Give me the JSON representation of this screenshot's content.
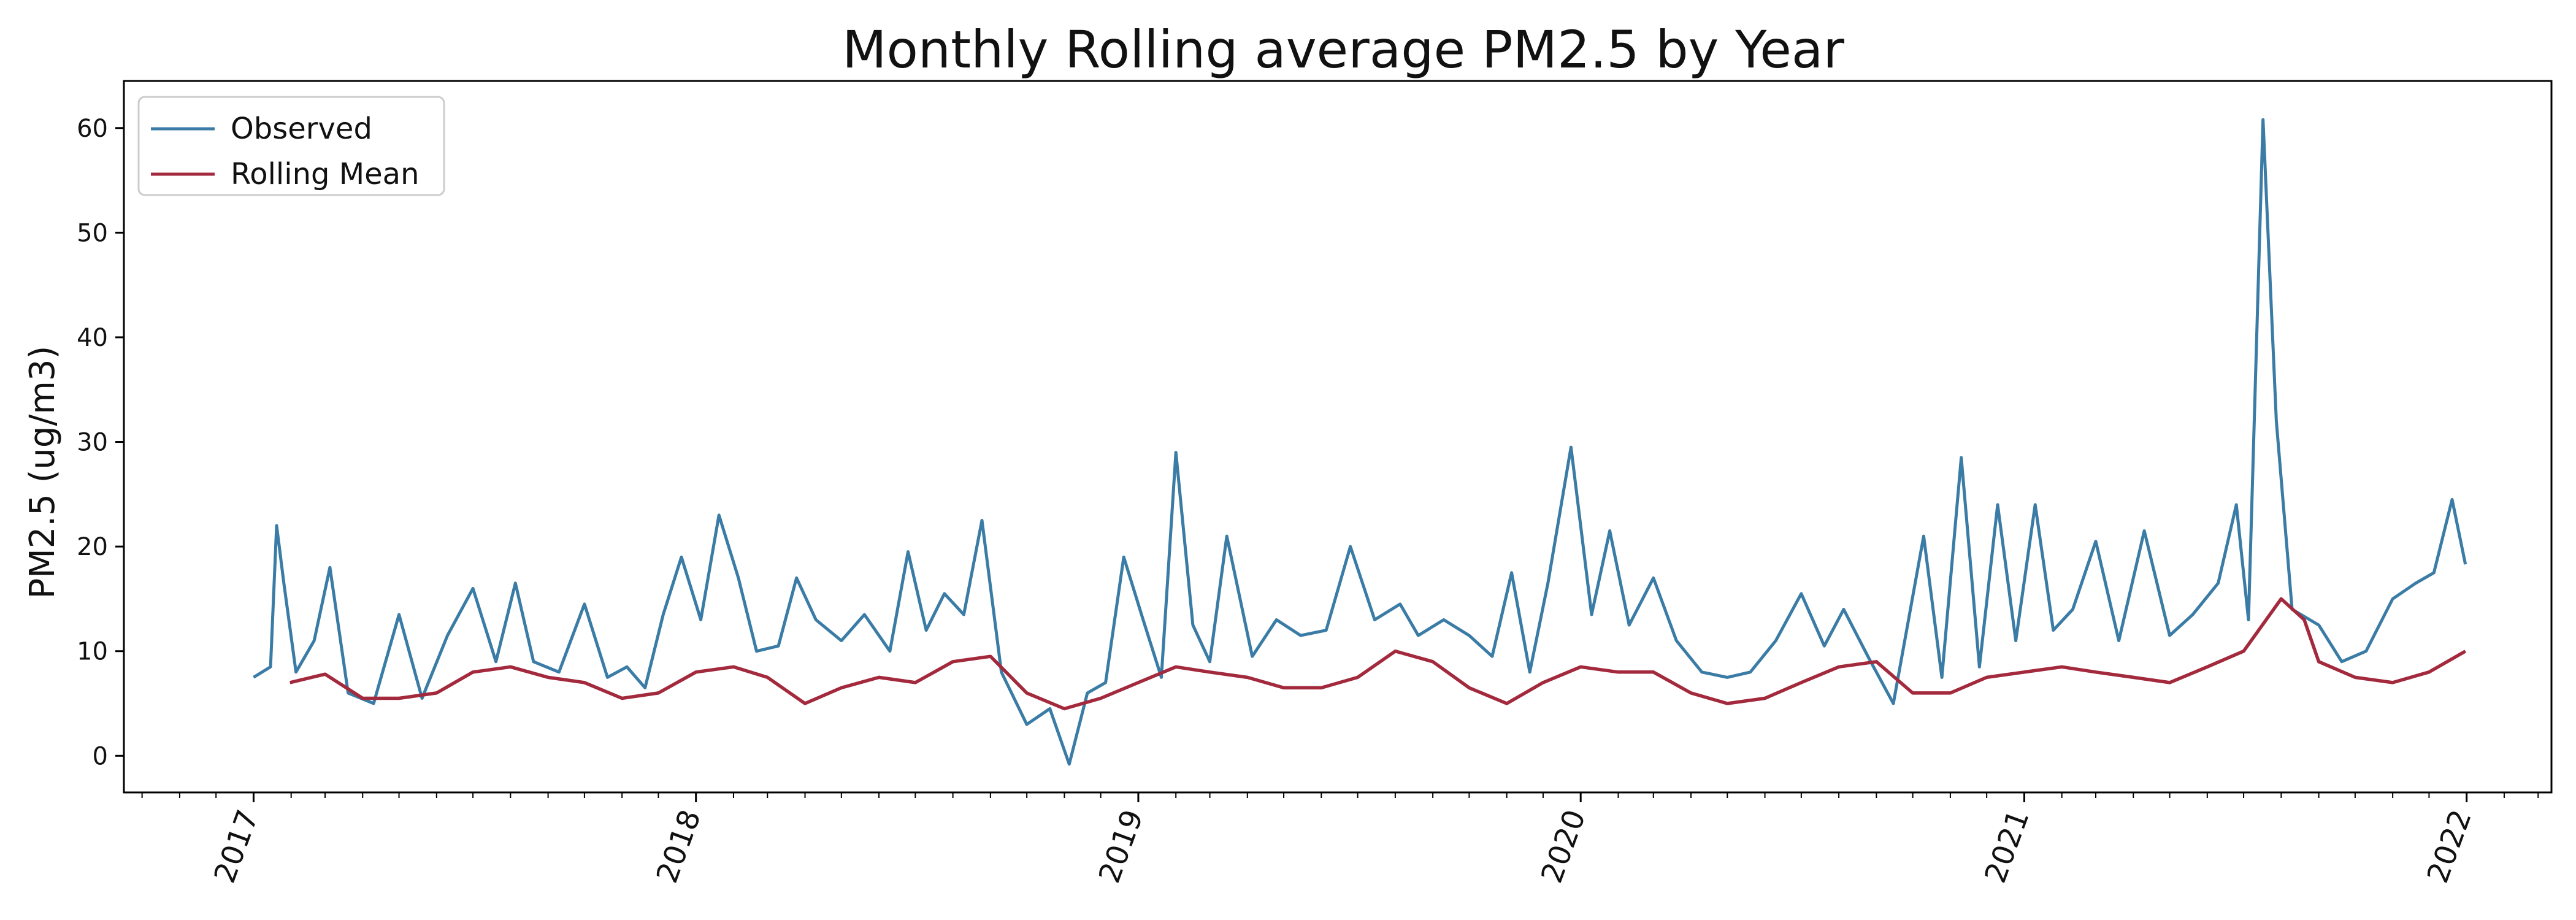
{
  "chart_data": {
    "type": "line",
    "title": "Monthly Rolling average PM2.5 by Year",
    "xlabel": "",
    "ylabel": "PM2.5 (ug/m3)",
    "xlim": [
      "2016-09-16",
      "2022-03-12"
    ],
    "ylim": [
      -3.5,
      64.5
    ],
    "grid": false,
    "legend_position": "top-left",
    "x_ticks": [
      "2017",
      "2018",
      "2019",
      "2020",
      "2021",
      "2022"
    ],
    "y_ticks": [
      0,
      10,
      20,
      30,
      40,
      50,
      60
    ],
    "series": [
      {
        "name": "Observed",
        "color": "#3a7ca5",
        "points": [
          [
            "2017-01-01",
            7.5
          ],
          [
            "2017-01-15",
            8.5
          ],
          [
            "2017-01-20",
            22.0
          ],
          [
            "2017-01-26",
            16.5
          ],
          [
            "2017-02-05",
            8.0
          ],
          [
            "2017-02-20",
            11.0
          ],
          [
            "2017-03-05",
            18.0
          ],
          [
            "2017-03-20",
            6.0
          ],
          [
            "2017-04-10",
            5.0
          ],
          [
            "2017-05-01",
            13.5
          ],
          [
            "2017-05-20",
            5.5
          ],
          [
            "2017-06-10",
            11.5
          ],
          [
            "2017-07-01",
            16.0
          ],
          [
            "2017-07-20",
            9.0
          ],
          [
            "2017-08-05",
            16.5
          ],
          [
            "2017-08-20",
            9.0
          ],
          [
            "2017-09-10",
            8.0
          ],
          [
            "2017-10-01",
            14.5
          ],
          [
            "2017-10-20",
            7.5
          ],
          [
            "2017-11-05",
            8.5
          ],
          [
            "2017-11-20",
            6.5
          ],
          [
            "2017-12-05",
            13.5
          ],
          [
            "2017-12-20",
            19.0
          ],
          [
            "2018-01-05",
            13.0
          ],
          [
            "2018-01-20",
            23.0
          ],
          [
            "2018-02-05",
            17.0
          ],
          [
            "2018-02-20",
            10.0
          ],
          [
            "2018-03-10",
            10.5
          ],
          [
            "2018-03-25",
            17.0
          ],
          [
            "2018-04-10",
            13.0
          ],
          [
            "2018-05-01",
            11.0
          ],
          [
            "2018-05-20",
            13.5
          ],
          [
            "2018-06-10",
            10.0
          ],
          [
            "2018-06-25",
            19.5
          ],
          [
            "2018-07-10",
            12.0
          ],
          [
            "2018-07-25",
            15.5
          ],
          [
            "2018-08-10",
            13.5
          ],
          [
            "2018-08-25",
            22.5
          ],
          [
            "2018-09-10",
            8.0
          ],
          [
            "2018-10-01",
            3.0
          ],
          [
            "2018-10-20",
            4.5
          ],
          [
            "2018-11-05",
            -0.8
          ],
          [
            "2018-11-20",
            6.0
          ],
          [
            "2018-12-05",
            7.0
          ],
          [
            "2018-12-20",
            19.0
          ],
          [
            "2019-01-05",
            13.0
          ],
          [
            "2019-01-20",
            7.5
          ],
          [
            "2019-02-01",
            29.0
          ],
          [
            "2019-02-15",
            12.5
          ],
          [
            "2019-03-01",
            9.0
          ],
          [
            "2019-03-15",
            21.0
          ],
          [
            "2019-04-05",
            9.5
          ],
          [
            "2019-04-25",
            13.0
          ],
          [
            "2019-05-15",
            11.5
          ],
          [
            "2019-06-05",
            12.0
          ],
          [
            "2019-06-25",
            20.0
          ],
          [
            "2019-07-15",
            13.0
          ],
          [
            "2019-08-05",
            14.5
          ],
          [
            "2019-08-20",
            11.5
          ],
          [
            "2019-09-10",
            13.0
          ],
          [
            "2019-10-01",
            11.5
          ],
          [
            "2019-10-20",
            9.5
          ],
          [
            "2019-11-05",
            17.5
          ],
          [
            "2019-11-20",
            8.0
          ],
          [
            "2019-12-05",
            16.5
          ],
          [
            "2019-12-24",
            29.5
          ],
          [
            "2020-01-10",
            13.5
          ],
          [
            "2020-01-25",
            21.5
          ],
          [
            "2020-02-10",
            12.5
          ],
          [
            "2020-03-01",
            17.0
          ],
          [
            "2020-03-20",
            11.0
          ],
          [
            "2020-04-10",
            8.0
          ],
          [
            "2020-05-01",
            7.5
          ],
          [
            "2020-05-20",
            8.0
          ],
          [
            "2020-06-10",
            11.0
          ],
          [
            "2020-07-01",
            15.5
          ],
          [
            "2020-07-20",
            10.5
          ],
          [
            "2020-08-05",
            14.0
          ],
          [
            "2020-08-25",
            9.5
          ],
          [
            "2020-09-15",
            5.0
          ],
          [
            "2020-10-10",
            21.0
          ],
          [
            "2020-10-25",
            7.5
          ],
          [
            "2020-11-10",
            28.5
          ],
          [
            "2020-11-25",
            8.5
          ],
          [
            "2020-12-10",
            24.0
          ],
          [
            "2020-12-25",
            11.0
          ],
          [
            "2021-01-10",
            24.0
          ],
          [
            "2021-01-25",
            12.0
          ],
          [
            "2021-02-10",
            14.0
          ],
          [
            "2021-03-01",
            20.5
          ],
          [
            "2021-03-20",
            11.0
          ],
          [
            "2021-04-10",
            21.5
          ],
          [
            "2021-05-01",
            11.5
          ],
          [
            "2021-05-20",
            13.5
          ],
          [
            "2021-06-10",
            16.5
          ],
          [
            "2021-06-25",
            24.0
          ],
          [
            "2021-07-05",
            13.0
          ],
          [
            "2021-07-17",
            60.8
          ],
          [
            "2021-07-28",
            32.0
          ],
          [
            "2021-08-10",
            14.0
          ],
          [
            "2021-09-01",
            12.5
          ],
          [
            "2021-09-20",
            9.0
          ],
          [
            "2021-10-10",
            10.0
          ],
          [
            "2021-11-01",
            15.0
          ],
          [
            "2021-11-20",
            16.5
          ],
          [
            "2021-12-05",
            17.5
          ],
          [
            "2021-12-20",
            24.5
          ],
          [
            "2021-12-31",
            18.3
          ]
        ]
      },
      {
        "name": "Rolling Mean",
        "color": "#a3293d",
        "points": [
          [
            "2017-01-31",
            7.0
          ],
          [
            "2017-03-01",
            7.8
          ],
          [
            "2017-04-01",
            5.5
          ],
          [
            "2017-05-01",
            5.5
          ],
          [
            "2017-06-01",
            6.0
          ],
          [
            "2017-07-01",
            8.0
          ],
          [
            "2017-08-01",
            8.5
          ],
          [
            "2017-09-01",
            7.5
          ],
          [
            "2017-10-01",
            7.0
          ],
          [
            "2017-11-01",
            5.5
          ],
          [
            "2017-12-01",
            6.0
          ],
          [
            "2018-01-01",
            8.0
          ],
          [
            "2018-02-01",
            8.5
          ],
          [
            "2018-03-01",
            7.5
          ],
          [
            "2018-04-01",
            5.0
          ],
          [
            "2018-05-01",
            6.5
          ],
          [
            "2018-06-01",
            7.5
          ],
          [
            "2018-07-01",
            7.0
          ],
          [
            "2018-08-01",
            9.0
          ],
          [
            "2018-09-01",
            9.5
          ],
          [
            "2018-10-01",
            6.0
          ],
          [
            "2018-11-01",
            4.5
          ],
          [
            "2018-12-01",
            5.5
          ],
          [
            "2019-01-01",
            7.0
          ],
          [
            "2019-02-01",
            8.5
          ],
          [
            "2019-03-01",
            8.0
          ],
          [
            "2019-04-01",
            7.5
          ],
          [
            "2019-05-01",
            6.5
          ],
          [
            "2019-06-01",
            6.5
          ],
          [
            "2019-07-01",
            7.5
          ],
          [
            "2019-08-01",
            10.0
          ],
          [
            "2019-09-01",
            9.0
          ],
          [
            "2019-10-01",
            6.5
          ],
          [
            "2019-11-01",
            5.0
          ],
          [
            "2019-12-01",
            7.0
          ],
          [
            "2020-01-01",
            8.5
          ],
          [
            "2020-02-01",
            8.0
          ],
          [
            "2020-03-01",
            8.0
          ],
          [
            "2020-04-01",
            6.0
          ],
          [
            "2020-05-01",
            5.0
          ],
          [
            "2020-06-01",
            5.5
          ],
          [
            "2020-07-01",
            7.0
          ],
          [
            "2020-08-01",
            8.5
          ],
          [
            "2020-09-01",
            9.0
          ],
          [
            "2020-10-01",
            6.0
          ],
          [
            "2020-11-01",
            6.0
          ],
          [
            "2020-12-01",
            7.5
          ],
          [
            "2021-01-01",
            8.0
          ],
          [
            "2021-02-01",
            8.5
          ],
          [
            "2021-03-01",
            8.0
          ],
          [
            "2021-04-01",
            7.5
          ],
          [
            "2021-05-01",
            7.0
          ],
          [
            "2021-06-01",
            8.5
          ],
          [
            "2021-07-01",
            10.0
          ],
          [
            "2021-08-01",
            15.0
          ],
          [
            "2021-08-20",
            13.0
          ],
          [
            "2021-09-01",
            9.0
          ],
          [
            "2021-10-01",
            7.5
          ],
          [
            "2021-11-01",
            7.0
          ],
          [
            "2021-12-01",
            8.0
          ],
          [
            "2021-12-31",
            10.0
          ]
        ]
      }
    ]
  }
}
